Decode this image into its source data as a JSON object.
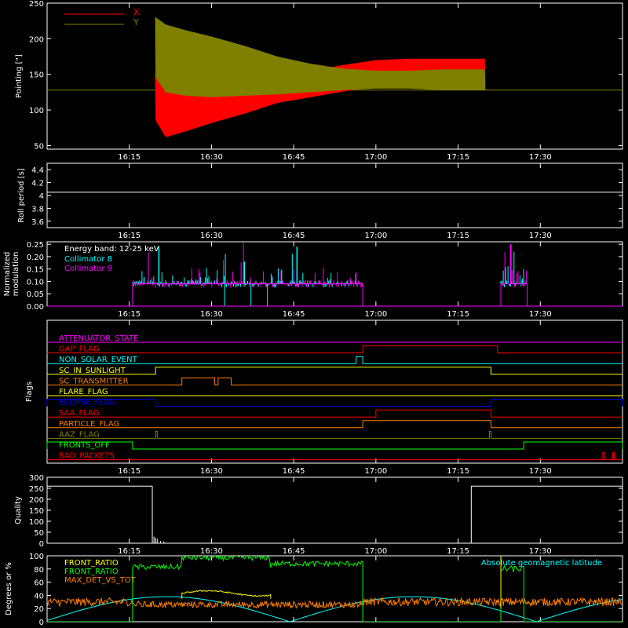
{
  "time_ticks": [
    "16:15",
    "16:30",
    "16:45",
    "17:00",
    "17:15",
    "17:30"
  ],
  "time_tick_hours": [
    16.25,
    16.5,
    16.75,
    17.0,
    17.25,
    17.5
  ],
  "time_range_hours": [
    16.0,
    17.75
  ],
  "chart_data": [
    {
      "type": "line",
      "ylabel": "Pointing [\"]",
      "ylim": [
        45,
        250
      ],
      "yticks": [
        50,
        100,
        150,
        200,
        250
      ],
      "legend": "top-left",
      "series": [
        {
          "name": "X",
          "color": "#ff0000",
          "envelope": {
            "t": [
              16.33,
              16.36,
              16.42,
              16.5,
              16.6,
              16.7,
              16.8,
              16.9,
              17.0,
              17.1,
              17.2,
              17.33
            ],
            "low": [
              85,
              62,
              70,
              82,
              95,
              110,
              118,
              126,
              133,
              135,
              135,
              135
            ],
            "high": [
              150,
              150,
              148,
              148,
              146,
              147,
              155,
              163,
              170,
              172,
              172,
              172
            ]
          }
        },
        {
          "name": "Y",
          "color": "#808000",
          "envelope": {
            "t": [
              16.33,
              16.36,
              16.42,
              16.5,
              16.6,
              16.7,
              16.8,
              16.9,
              17.0,
              17.1,
              17.2,
              17.33
            ],
            "low": [
              145,
              125,
              120,
              118,
              120,
              122,
              125,
              128,
              130,
              130,
              128,
              128
            ],
            "high": [
              230,
              220,
              212,
              203,
              190,
              175,
              165,
              158,
              155,
              155,
              157,
              157
            ]
          }
        }
      ],
      "baseline": 128
    },
    {
      "type": "line",
      "ylabel": "Roll period [s]",
      "ylim": [
        3.5,
        4.5
      ],
      "yticks": [
        3.6,
        3.8,
        4.0,
        4.2,
        4.4
      ],
      "series": [
        {
          "color": "#ffffff",
          "values": [
            4.05
          ]
        }
      ]
    },
    {
      "type": "bar",
      "ylabel": "Normalized modulation",
      "ylim": [
        0,
        0.26
      ],
      "yticks": [
        "0.00",
        "0.05",
        "0.10",
        "0.15",
        "0.20",
        "0.25"
      ],
      "legend_title": "Energy band: 12-25 keV",
      "series": [
        {
          "name": "Collimator 8",
          "color": "#00ffff"
        },
        {
          "name": "Collimator 9",
          "color": "#ff00ff"
        }
      ],
      "active_segments": [
        [
          16.26,
          16.96
        ],
        [
          17.38,
          17.46
        ]
      ],
      "level": 0.09
    },
    {
      "type": "line",
      "ylabel": "Flags",
      "flags": [
        {
          "name": "ATTENUATOR_STATE",
          "color": "#ff00ff",
          "segments": []
        },
        {
          "name": "GAP_FLAG",
          "color": "#ff0000",
          "segments": [
            [
              16.96,
              17.37
            ]
          ]
        },
        {
          "name": "NON_SOLAR_EVENT",
          "color": "#00ffff",
          "segments": [
            [
              16.94,
              16.96
            ]
          ]
        },
        {
          "name": "SC_IN_SUNLIGHT",
          "color": "#ffff00",
          "segments": [
            [
              16.33,
              17.35
            ]
          ]
        },
        {
          "name": "SC_TRANSMITTER",
          "color": "#ff8000",
          "segments": [
            [
              16.41,
              16.51
            ],
            [
              16.52,
              16.56
            ]
          ]
        },
        {
          "name": "FLARE_FLAG",
          "color": "#ffff00",
          "segments": []
        },
        {
          "name": "ECLIPSE_FLAG",
          "color": "#0000ff",
          "segments": [
            [
              16.0,
              16.33
            ],
            [
              17.35,
              17.75
            ]
          ]
        },
        {
          "name": "SAA_FLAG",
          "color": "#ff0000",
          "segments": [
            [
              17.0,
              17.35
            ]
          ]
        },
        {
          "name": "PARTICLE_FLAG",
          "color": "#ff8000",
          "segments": [
            [
              16.96,
              17.35
            ]
          ]
        },
        {
          "name": "AAZ_FLAG",
          "color": "#808000",
          "segments": [
            [
              16.33,
              16.335
            ],
            [
              17.345,
              17.35
            ]
          ]
        },
        {
          "name": "FRONTS_OFF",
          "color": "#00ff00",
          "segments": [
            [
              16.0,
              16.26
            ],
            [
              17.45,
              17.75
            ]
          ]
        },
        {
          "name": "BAD_PACKETS",
          "color": "#ff0000",
          "segments": [
            [
              17.69,
              17.695
            ],
            [
              17.72,
              17.725
            ]
          ]
        }
      ]
    },
    {
      "type": "line",
      "ylabel": "Quality",
      "ylim": [
        0,
        300
      ],
      "yticks": [
        0,
        50,
        100,
        150,
        200,
        250,
        300
      ],
      "series": [
        {
          "color": "#ffffff",
          "segments": [
            [
              16.0,
              16.32,
              260
            ],
            [
              17.29,
              17.75,
              260
            ]
          ]
        }
      ]
    },
    {
      "type": "line",
      "ylabel": "Degrees or %",
      "ylim": [
        0,
        100
      ],
      "yticks": [
        0,
        20,
        40,
        60,
        80,
        100
      ],
      "annotation": "Absolute geomagnetic latitude",
      "series": [
        {
          "name": "FRONT_RATIO",
          "color": "#ffff00"
        },
        {
          "name": "FRONT_RATIO",
          "color": "#00ff00"
        },
        {
          "name": "MAX_DET_VS_TOT",
          "color": "#ff8000"
        }
      ],
      "latitude_color": "#00ffff"
    }
  ]
}
